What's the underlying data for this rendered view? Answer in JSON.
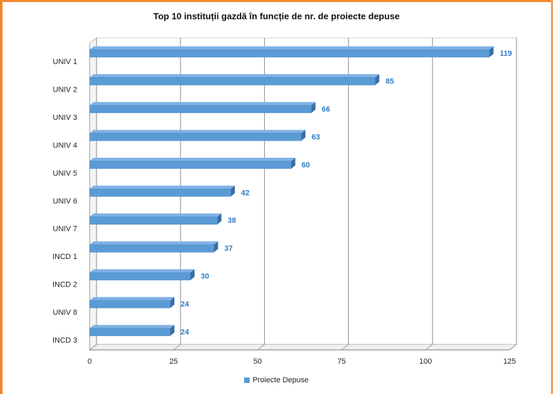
{
  "chart_data": {
    "type": "bar",
    "orientation": "horizontal",
    "title": "Top 10 instituții gazdă în funcție de nr. de proiecte depuse",
    "categories": [
      "UNIV 1",
      "UNIV 2",
      "UNIV 3",
      "UNIV 4",
      "UNIV 5",
      "UNIV 6",
      "UNIV 7",
      "INCD 1",
      "INCD 2",
      "UNIV 8",
      "INCD 3"
    ],
    "series": [
      {
        "name": "Proiecte Depuse",
        "values": [
          119,
          85,
          66,
          63,
          60,
          42,
          38,
          37,
          30,
          24,
          24
        ]
      }
    ],
    "xlim": [
      0,
      125
    ],
    "xticks": [
      0,
      25,
      50,
      75,
      100,
      125
    ],
    "grid": true,
    "legend_position": "bottom",
    "bar_color": "#5b9bd5",
    "bar_side_color": "#3a6ea5",
    "label_color": "#2f7cc5"
  }
}
